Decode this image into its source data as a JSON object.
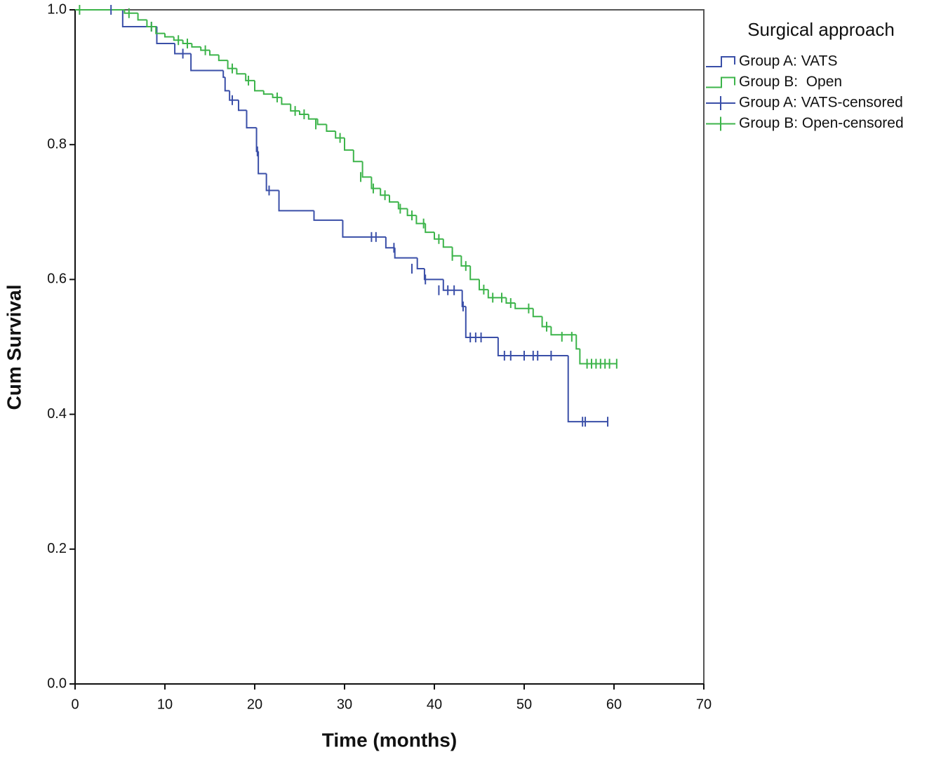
{
  "chart_data": {
    "type": "kaplan-meier",
    "xlabel": "Time (months)",
    "ylabel": "Cum Survival",
    "legend_title": "Surgical approach",
    "xlim": [
      0,
      70
    ],
    "xticks": [
      0,
      10,
      20,
      30,
      40,
      50,
      60,
      70
    ],
    "ylim": [
      0,
      1
    ],
    "yticks": [
      {
        "value": 0,
        "label": "0.0"
      },
      0.2,
      0.4,
      0.6,
      0.8,
      {
        "value": 1,
        "label": "1.0"
      }
    ],
    "legend": "right",
    "series": [
      {
        "name": "Group A: VATS",
        "color": "#3a4fa8",
        "style": "step",
        "x": [
          0,
          5.3,
          9.1,
          11.1,
          12.9,
          16.5,
          16.7,
          17.2,
          18.2,
          19.1,
          20.2,
          20.4,
          21.3,
          22.7,
          26.6,
          29.8,
          34.6,
          35.6,
          38.1,
          38.9,
          41.0,
          43.1,
          43.5,
          47.1,
          54.9
        ],
        "values": [
          1.0,
          0.975,
          0.95,
          0.935,
          0.91,
          0.9,
          0.88,
          0.866,
          0.851,
          0.825,
          0.79,
          0.757,
          0.732,
          0.702,
          0.688,
          0.663,
          0.647,
          0.632,
          0.616,
          0.6,
          0.584,
          0.56,
          0.514,
          0.487,
          0.389
        ]
      },
      {
        "name": "Group B:  Open",
        "color": "#3cb44a",
        "style": "step",
        "x": [
          0,
          5.5,
          7,
          8,
          9,
          10,
          11,
          12,
          13,
          14,
          15,
          16,
          17,
          18,
          19,
          20,
          21,
          22,
          23,
          24,
          25,
          26,
          27,
          28,
          29,
          30,
          31,
          32,
          33,
          34,
          35,
          36,
          37,
          38,
          39,
          40,
          41,
          42,
          43,
          44,
          45,
          46,
          48,
          49,
          51,
          52,
          53,
          55.8,
          56.2
        ],
        "values": [
          1.0,
          0.995,
          0.985,
          0.975,
          0.965,
          0.96,
          0.955,
          0.95,
          0.945,
          0.94,
          0.933,
          0.925,
          0.913,
          0.905,
          0.895,
          0.88,
          0.875,
          0.87,
          0.86,
          0.85,
          0.845,
          0.838,
          0.83,
          0.82,
          0.81,
          0.792,
          0.775,
          0.752,
          0.735,
          0.725,
          0.715,
          0.705,
          0.695,
          0.683,
          0.67,
          0.66,
          0.648,
          0.635,
          0.62,
          0.6,
          0.585,
          0.573,
          0.565,
          0.557,
          0.545,
          0.53,
          0.518,
          0.497,
          0.475
        ]
      },
      {
        "name": "Group A: VATS-censored",
        "color": "#3a4fa8",
        "style": "censored",
        "x": [
          4.0,
          8.5,
          12.0,
          17.5,
          20.3,
          21.6,
          33.0,
          33.5,
          35.5,
          37.5,
          39.0,
          40.5,
          41.5,
          42.2,
          43.2,
          44.0,
          44.6,
          45.2,
          47.8,
          48.5,
          50.0,
          51.0,
          51.5,
          53.0,
          56.5,
          56.8,
          59.3
        ],
        "values": [
          1.0,
          0.975,
          0.935,
          0.866,
          0.79,
          0.732,
          0.663,
          0.663,
          0.647,
          0.616,
          0.6,
          0.584,
          0.584,
          0.584,
          0.56,
          0.514,
          0.514,
          0.514,
          0.487,
          0.487,
          0.487,
          0.487,
          0.487,
          0.487,
          0.389,
          0.389,
          0.389
        ]
      },
      {
        "name": "Group B: Open-censored",
        "color": "#3cb44a",
        "style": "censored",
        "x": [
          0.5,
          6.0,
          8.5,
          11.5,
          12.5,
          14.5,
          17.5,
          19.3,
          22.5,
          24.5,
          25.5,
          26.8,
          29.5,
          31.8,
          33.2,
          34.5,
          36.2,
          37.5,
          38.8,
          40.5,
          42.0,
          43.5,
          45.5,
          46.5,
          47.5,
          48.5,
          50.5,
          52.5,
          54.2,
          55.3,
          57.0,
          57.5,
          58.0,
          58.5,
          59.0,
          59.5,
          60.3
        ],
        "values": [
          1.0,
          0.995,
          0.975,
          0.955,
          0.95,
          0.94,
          0.913,
          0.895,
          0.87,
          0.85,
          0.845,
          0.83,
          0.81,
          0.752,
          0.735,
          0.725,
          0.705,
          0.695,
          0.683,
          0.66,
          0.635,
          0.62,
          0.585,
          0.573,
          0.573,
          0.565,
          0.557,
          0.53,
          0.515,
          0.515,
          0.475,
          0.475,
          0.475,
          0.475,
          0.475,
          0.475,
          0.475
        ]
      }
    ]
  }
}
